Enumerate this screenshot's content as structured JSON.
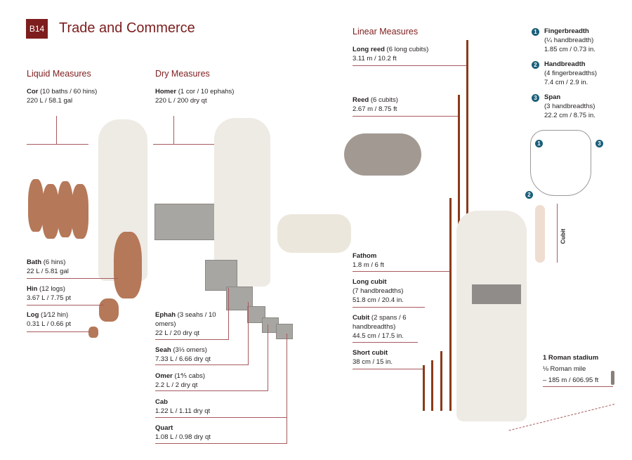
{
  "header": {
    "badge": "B14",
    "title": "Trade and Commerce"
  },
  "liquid": {
    "heading": "Liquid Measures",
    "items": [
      {
        "name": "Cor",
        "detail": " (10 baths / 60 hins)",
        "value": "220 L / 58.1 gal"
      },
      {
        "name": "Bath",
        "detail": " (6 hins)",
        "value": "22 L / 5.81 gal"
      },
      {
        "name": "Hin",
        "detail": " (12 logs)",
        "value": "3.67 L / 7.75 pt"
      },
      {
        "name": "Log",
        "detail": " (1⁄12 hin)",
        "value": "0.31 L / 0.66 pt"
      }
    ]
  },
  "dry": {
    "heading": "Dry Measures",
    "items": [
      {
        "name": "Homer",
        "detail": " (1 cor / 10 ephahs)",
        "value": "220 L / 200 dry qt"
      },
      {
        "name": "Ephah",
        "detail": " (3 seahs / 10 omers)",
        "value": "22 L / 20 dry qt"
      },
      {
        "name": "Seah",
        "detail": " (3⅓ omers)",
        "value": "7.33 L / 6.66 dry qt"
      },
      {
        "name": "Omer",
        "detail": " (1⅘ cabs)",
        "value": "2.2 L / 2 dry qt"
      },
      {
        "name": "Cab",
        "detail": "",
        "value": "1.22 L / 1.11 dry qt"
      },
      {
        "name": "Quart",
        "detail": "",
        "value": "1.08 L / 0.98 dry qt"
      }
    ]
  },
  "linear": {
    "heading": "Linear Measures",
    "items": [
      {
        "name": "Long reed",
        "detail": " (6 long cubits)",
        "value": "3.11 m / 10.2 ft"
      },
      {
        "name": "Reed",
        "detail": " (6 cubits)",
        "value": "2.67 m / 8.75 ft"
      },
      {
        "name": "Fathom",
        "detail": "",
        "value": "1.8 m / 6 ft"
      },
      {
        "name": "Long cubit",
        "detail": "(7 handbreadths)",
        "value": "51.8 cm / 20.4 in."
      },
      {
        "name": "Cubit",
        "detail": " (2 spans / 6 handbreadths)",
        "value": "44.5 cm / 17.5 in."
      },
      {
        "name": "Short cubit",
        "detail": "",
        "value": "38 cm / 15 in."
      }
    ]
  },
  "hand": {
    "items": [
      {
        "num": "1",
        "name": "Fingerbreadth",
        "detail": "(¼ handbreadth)",
        "value": "1.85 cm / 0.73 in."
      },
      {
        "num": "2",
        "name": "Handbreadth",
        "detail": "(4 fingerbreadths)",
        "value": "7.4 cm / 2.9 in."
      },
      {
        "num": "3",
        "name": "Span",
        "detail": "(3 handbreadths)",
        "value": "22.2 cm / 8.75 in."
      }
    ],
    "cubit_label": "Cubit",
    "marker1": "1",
    "marker2": "2",
    "marker3": "3"
  },
  "stadium": {
    "name": "1 Roman stadium",
    "detail": "⅛ Roman mile",
    "value": "– 185 m / 606.95 ft"
  },
  "colors": {
    "accent": "#7d1d1d",
    "rod": "#8b3a1a",
    "marker": "#1a5f7a"
  }
}
